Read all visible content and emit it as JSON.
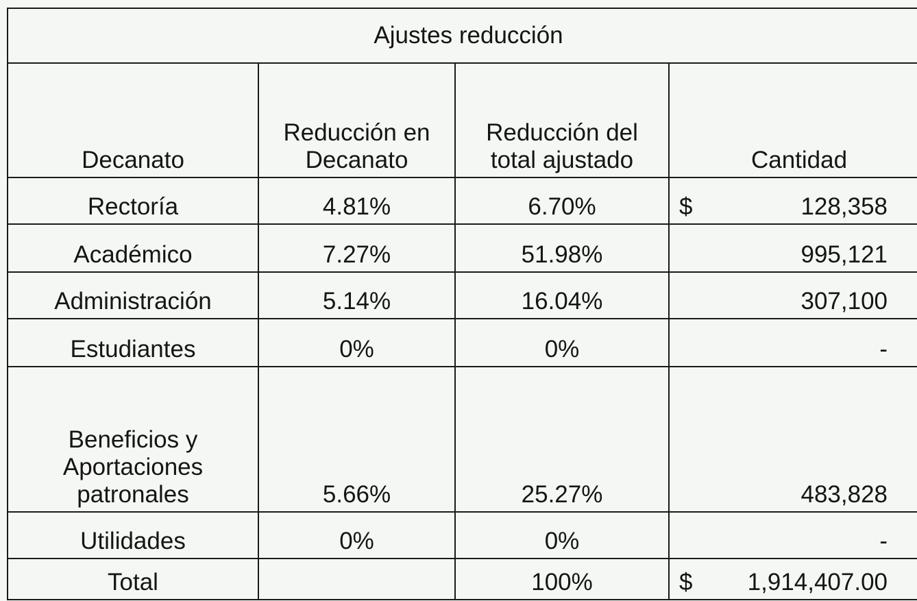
{
  "table": {
    "title": "Ajustes reducción",
    "headers": [
      "Decanato",
      "Reducción en\nDecanato",
      "Reducción del\ntotal ajustado",
      "Cantidad"
    ],
    "rows": [
      {
        "decanato": "Rectoría",
        "reduccion_decanato": "4.81%",
        "reduccion_total": "6.70%",
        "currency": "$",
        "cantidad": "128,358"
      },
      {
        "decanato": "Académico",
        "reduccion_decanato": "7.27%",
        "reduccion_total": "51.98%",
        "cantidad": "995,121"
      },
      {
        "decanato": "Administración",
        "reduccion_decanato": "5.14%",
        "reduccion_total": "16.04%",
        "cantidad": "307,100"
      },
      {
        "decanato": "Estudiantes",
        "reduccion_decanato": "0%",
        "reduccion_total": "0%",
        "cantidad": "-"
      },
      {
        "decanato": "Beneficios y\nAportaciones\npatronales",
        "reduccion_decanato": "5.66%",
        "reduccion_total": "25.27%",
        "cantidad": "483,828"
      },
      {
        "decanato": "Utilidades",
        "reduccion_decanato": "0%",
        "reduccion_total": "0%",
        "cantidad": "-"
      },
      {
        "decanato": "Total",
        "reduccion_total": "100%",
        "currency": "$",
        "cantidad": "1,914,407.00"
      }
    ]
  }
}
